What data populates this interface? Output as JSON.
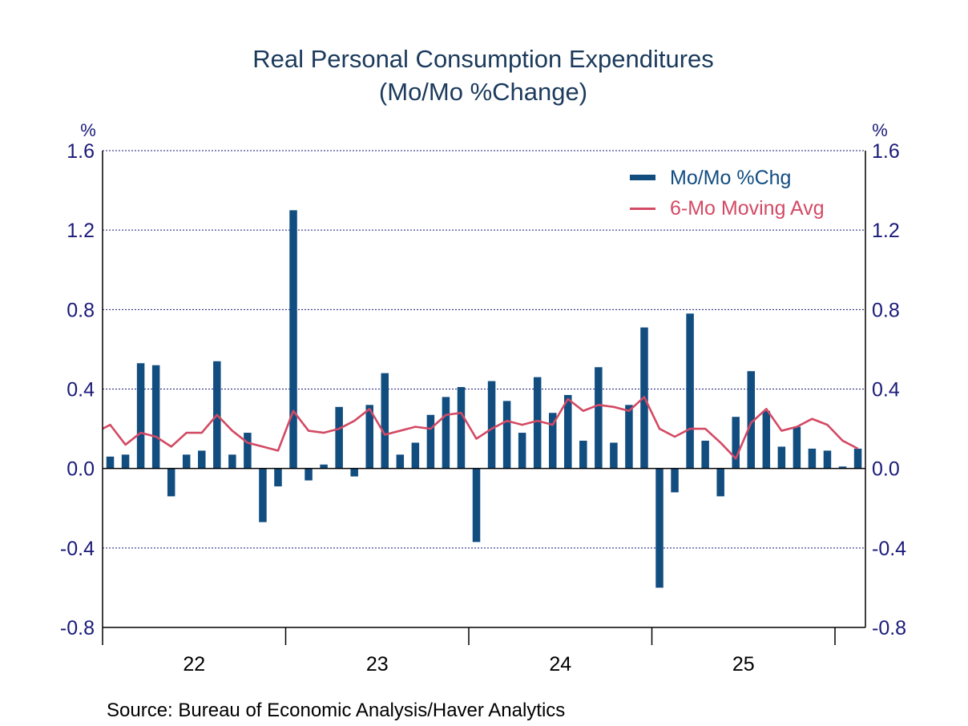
{
  "chart_data": {
    "type": "bar",
    "title": "Real Personal Consumption Expenditures",
    "subtitle": "(Mo/Mo %Change)",
    "ylabel_left": "%",
    "ylabel_right": "%",
    "xlabel": "",
    "ylim": [
      -0.8,
      1.6
    ],
    "yticks": [
      1.6,
      1.2,
      0.8,
      0.4,
      0.0,
      -0.4,
      -0.8
    ],
    "ytick_labels": [
      "1.6",
      "1.2",
      "0.8",
      "0.4",
      "0.0",
      "-0.4",
      "-0.8"
    ],
    "grid": true,
    "x_year_labels": [
      "22",
      "23",
      "24",
      "25"
    ],
    "frequency": "monthly",
    "start": "Jan 2022",
    "months_per_year": 12,
    "x_slots": 50,
    "legend_position": "top-right",
    "colors": {
      "bars": "#124d80",
      "line": "#d34a64",
      "text": "#1a1a7a",
      "title": "#1b3a5c"
    },
    "series": [
      {
        "name": "Mo/Mo %Chg",
        "type": "bar",
        "values": [
          0.06,
          0.07,
          0.53,
          0.52,
          -0.14,
          0.07,
          0.09,
          0.54,
          0.07,
          0.18,
          -0.27,
          -0.09,
          1.3,
          -0.06,
          0.02,
          0.31,
          -0.04,
          0.32,
          0.48,
          0.07,
          0.13,
          0.27,
          0.36,
          0.41,
          -0.37,
          0.44,
          0.34,
          0.18,
          0.46,
          0.28,
          0.37,
          0.14,
          0.51,
          0.13,
          0.32,
          0.71,
          -0.6,
          -0.12,
          0.78,
          0.14,
          -0.14,
          0.26,
          0.49,
          0.29,
          0.11,
          0.21,
          0.1,
          0.09,
          0.01,
          0.1
        ]
      },
      {
        "name": "6-Mo Moving Avg",
        "type": "line",
        "prior_value": 0.2,
        "values": [
          0.22,
          0.12,
          0.18,
          0.16,
          0.11,
          0.18,
          0.18,
          0.27,
          0.19,
          0.13,
          0.11,
          0.09,
          0.29,
          0.19,
          0.18,
          0.2,
          0.24,
          0.3,
          0.17,
          0.19,
          0.21,
          0.2,
          0.27,
          0.28,
          0.15,
          0.2,
          0.24,
          0.22,
          0.24,
          0.22,
          0.35,
          0.29,
          0.32,
          0.31,
          0.29,
          0.36,
          0.2,
          0.16,
          0.2,
          0.2,
          0.13,
          0.05,
          0.23,
          0.3,
          0.19,
          0.21,
          0.25,
          0.22,
          0.14,
          0.1
        ]
      }
    ],
    "source": "Source:  Bureau of Economic Analysis/Haver Analytics"
  }
}
